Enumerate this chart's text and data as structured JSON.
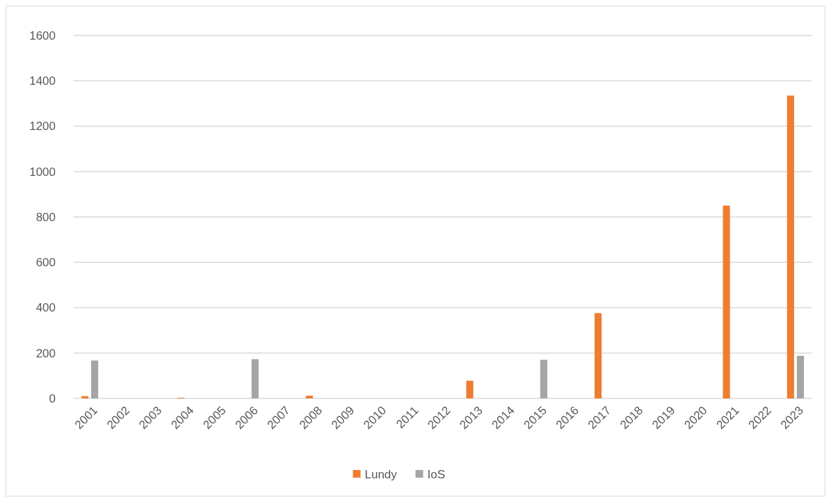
{
  "chart_data": {
    "type": "bar",
    "categories": [
      "2001",
      "2002",
      "2003",
      "2004",
      "2005",
      "2006",
      "2007",
      "2008",
      "2009",
      "2010",
      "2011",
      "2012",
      "2013",
      "2014",
      "2015",
      "2016",
      "2017",
      "2018",
      "2019",
      "2020",
      "2021",
      "2022",
      "2023"
    ],
    "series": [
      {
        "name": "Lundy",
        "color": "#ed7d31",
        "values": [
          10,
          0,
          0,
          3,
          0,
          0,
          0,
          12,
          0,
          0,
          0,
          0,
          78,
          0,
          0,
          0,
          376,
          0,
          0,
          0,
          850,
          0,
          1335
        ]
      },
      {
        "name": "IoS",
        "color": "#a5a5a5",
        "values": [
          167,
          0,
          0,
          0,
          0,
          173,
          0,
          0,
          0,
          0,
          0,
          0,
          0,
          0,
          170,
          0,
          0,
          0,
          0,
          0,
          0,
          0,
          188
        ]
      }
    ],
    "ylim": [
      0,
      1600
    ],
    "yticks": [
      0,
      200,
      400,
      600,
      800,
      1000,
      1200,
      1400,
      1600
    ],
    "grid": "y",
    "legend": "bottom"
  }
}
